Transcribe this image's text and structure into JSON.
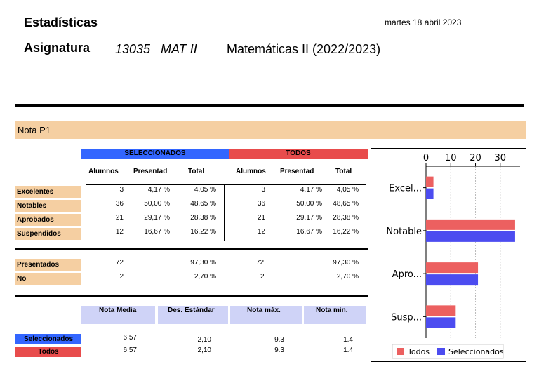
{
  "header": {
    "title": "Estadísticas",
    "date": "martes 18 abril 2023",
    "asignatura_label": "Asignatura",
    "asignatura_code": "13035   MAT II",
    "asignatura_name": "Matemáticas II (2022/2023)"
  },
  "section_title": "Nota P1",
  "groups": {
    "selected": "SELECCIONADOS",
    "all": "TODOS",
    "selected_color": "#3366ff",
    "all_color": "#e84c4c"
  },
  "columns": [
    "Alumnos",
    "Presentad",
    "Total"
  ],
  "grades": [
    {
      "label": "Excelentes",
      "sel": [
        "3",
        "4,17 %",
        "4,05 %"
      ],
      "all": [
        "3",
        "4,17 %",
        "4,05 %"
      ]
    },
    {
      "label": "Notables",
      "sel": [
        "36",
        "50,00 %",
        "48,65 %"
      ],
      "all": [
        "36",
        "50,00 %",
        "48,65 %"
      ]
    },
    {
      "label": "Aprobados",
      "sel": [
        "21",
        "29,17 %",
        "28,38 %"
      ],
      "all": [
        "21",
        "29,17 %",
        "28,38 %"
      ]
    },
    {
      "label": "Suspendidos",
      "sel": [
        "12",
        "16,67 %",
        "16,22 %"
      ],
      "all": [
        "12",
        "16,67 %",
        "16,22 %"
      ]
    }
  ],
  "presence": [
    {
      "label": "Presentados",
      "sel_n": "72",
      "sel_pct": "97,30 %",
      "all_n": "72",
      "all_pct": "97,30 %"
    },
    {
      "label": "No",
      "sel_n": "2",
      "sel_pct": "2,70 %",
      "all_n": "2",
      "all_pct": "2,70 %"
    }
  ],
  "stats": {
    "headers": [
      "Nota Media",
      "Des. Estándar",
      "Nota máx.",
      "Nota min."
    ],
    "rows": [
      {
        "label": "Seleccionados",
        "color": "#3366ff",
        "values": [
          "6,57",
          "2,10",
          "9.3",
          "1.4"
        ]
      },
      {
        "label": "Todos",
        "color": "#e84c4c",
        "values": [
          "6,57",
          "2,10",
          "9.3",
          "1.4"
        ]
      }
    ]
  },
  "chart_data": {
    "type": "bar",
    "orientation": "horizontal",
    "categories": [
      "Excel...",
      "Notable",
      "Apro...",
      "Susp..."
    ],
    "series": [
      {
        "name": "Todos",
        "color": "#ec6060",
        "values": [
          3,
          36,
          21,
          12
        ]
      },
      {
        "name": "Seleccionados",
        "color": "#4c4cf0",
        "values": [
          3,
          36,
          21,
          12
        ]
      }
    ],
    "xticks": [
      "0",
      "10",
      "20",
      "30"
    ],
    "xlim": [
      0,
      38
    ],
    "axis_position": "top",
    "grid": true,
    "legend_position": "bottom"
  }
}
